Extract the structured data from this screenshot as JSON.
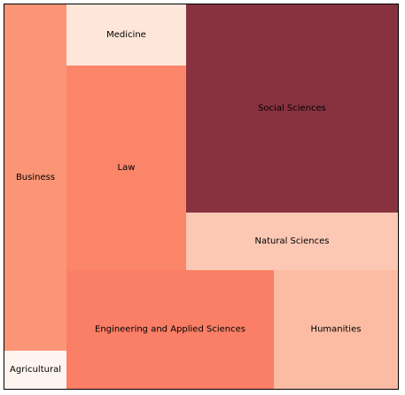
{
  "chart_data": {
    "type": "treemap",
    "tiles": [
      {
        "label": "Business",
        "color": "#fc9576"
      },
      {
        "label": "Agricultural",
        "color": "#fff5f0"
      },
      {
        "label": "Medicine",
        "color": "#fee6da"
      },
      {
        "label": "Law",
        "color": "#fb8569"
      },
      {
        "label": "Engineering and Applied Sciences",
        "color": "#fb7f66"
      },
      {
        "label": "Social Sciences",
        "color": "#883240"
      },
      {
        "label": "Natural Sciences",
        "color": "#fcc8b4"
      },
      {
        "label": "Humanities",
        "color": "#fcbca3"
      }
    ]
  }
}
